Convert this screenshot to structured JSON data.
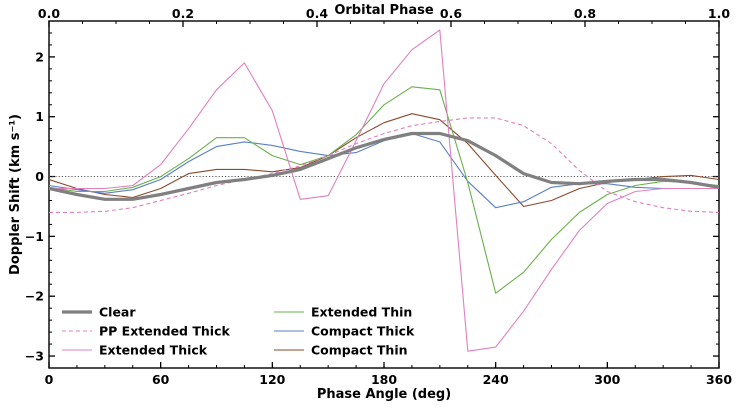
{
  "chart_data": {
    "type": "line",
    "xlabel": "Phase Angle (deg)",
    "ylabel": "Doppler Shift (km s⁻¹)",
    "top_xlabel": "Orbital Phase",
    "xlim": [
      0,
      360
    ],
    "ylim": [
      -3.2,
      2.6
    ],
    "top_xlim": [
      0.0,
      1.0
    ],
    "x_ticks": [
      0,
      60,
      120,
      180,
      240,
      300,
      360
    ],
    "x_tick_labels": [
      "0",
      "60",
      "120",
      "180",
      "240",
      "300",
      "360"
    ],
    "top_ticks": [
      0.0,
      0.2,
      0.4,
      0.6,
      0.8,
      1.0
    ],
    "top_tick_labels": [
      "0.0",
      "0.2",
      "0.4",
      "0.6",
      "0.8",
      "1.0"
    ],
    "y_ticks": [
      -3,
      -2,
      -1,
      0,
      1,
      2
    ],
    "y_tick_labels": [
      "−3",
      "−2",
      "−1",
      "0",
      "1",
      "2"
    ],
    "reference_line": {
      "y": 0,
      "style": "dotted",
      "color": "#555555"
    },
    "grid": false,
    "legend": {
      "placement": "lower-left",
      "columns": 2
    },
    "x": [
      0,
      15,
      30,
      45,
      60,
      75,
      90,
      105,
      120,
      135,
      150,
      165,
      180,
      195,
      210,
      225,
      240,
      255,
      270,
      285,
      300,
      315,
      330,
      345,
      360
    ],
    "series": [
      {
        "name": "Clear",
        "color": "#808080",
        "width": 3.2,
        "dash": "none",
        "values": [
          -0.2,
          -0.3,
          -0.38,
          -0.38,
          -0.3,
          -0.2,
          -0.1,
          -0.05,
          0.02,
          0.12,
          0.3,
          0.48,
          0.62,
          0.72,
          0.72,
          0.6,
          0.35,
          0.05,
          -0.1,
          -0.12,
          -0.08,
          -0.05,
          -0.05,
          -0.1,
          -0.18
        ]
      },
      {
        "name": "PP Extended Thick",
        "color": "#e080c0",
        "width": 1.1,
        "dash": "4,3",
        "values": [
          -0.6,
          -0.6,
          -0.58,
          -0.52,
          -0.4,
          -0.28,
          -0.15,
          -0.05,
          0.05,
          0.18,
          0.35,
          0.55,
          0.72,
          0.85,
          0.92,
          0.98,
          0.98,
          0.85,
          0.55,
          0.1,
          -0.25,
          -0.42,
          -0.52,
          -0.58,
          -0.6
        ]
      },
      {
        "name": "Extended Thick",
        "color": "#e080c0",
        "width": 1.1,
        "dash": "none",
        "values": [
          -0.2,
          -0.2,
          -0.2,
          -0.15,
          0.2,
          0.8,
          1.45,
          1.9,
          1.1,
          -0.38,
          -0.32,
          0.6,
          1.55,
          2.12,
          2.45,
          -2.92,
          -2.85,
          -2.25,
          -1.55,
          -0.9,
          -0.45,
          -0.25,
          -0.2,
          -0.2,
          -0.2
        ]
      },
      {
        "name": "Extended Thin",
        "color": "#6ab04c",
        "width": 1.1,
        "dash": "none",
        "values": [
          -0.18,
          -0.25,
          -0.25,
          -0.18,
          0.0,
          0.3,
          0.65,
          0.65,
          0.35,
          0.2,
          0.35,
          0.7,
          1.2,
          1.5,
          1.45,
          -0.1,
          -1.95,
          -1.6,
          -1.05,
          -0.6,
          -0.3,
          -0.15,
          -0.08,
          -0.1,
          -0.15
        ]
      },
      {
        "name": "Compact Thick",
        "color": "#5a7fc4",
        "width": 1.1,
        "dash": "none",
        "values": [
          -0.15,
          -0.22,
          -0.28,
          -0.22,
          -0.05,
          0.25,
          0.5,
          0.58,
          0.52,
          0.42,
          0.35,
          0.4,
          0.6,
          0.72,
          0.58,
          -0.08,
          -0.52,
          -0.42,
          -0.18,
          -0.12,
          -0.12,
          -0.18,
          -0.2,
          -0.2,
          -0.2
        ]
      },
      {
        "name": "Compact Thin",
        "color": "#8b4a2b",
        "width": 1.1,
        "dash": "none",
        "values": [
          -0.05,
          -0.2,
          -0.3,
          -0.35,
          -0.2,
          0.05,
          0.12,
          0.12,
          0.08,
          0.15,
          0.35,
          0.65,
          0.9,
          1.05,
          0.95,
          0.55,
          0.02,
          -0.5,
          -0.4,
          -0.2,
          -0.1,
          -0.05,
          0.0,
          0.02,
          -0.05
        ]
      }
    ]
  }
}
